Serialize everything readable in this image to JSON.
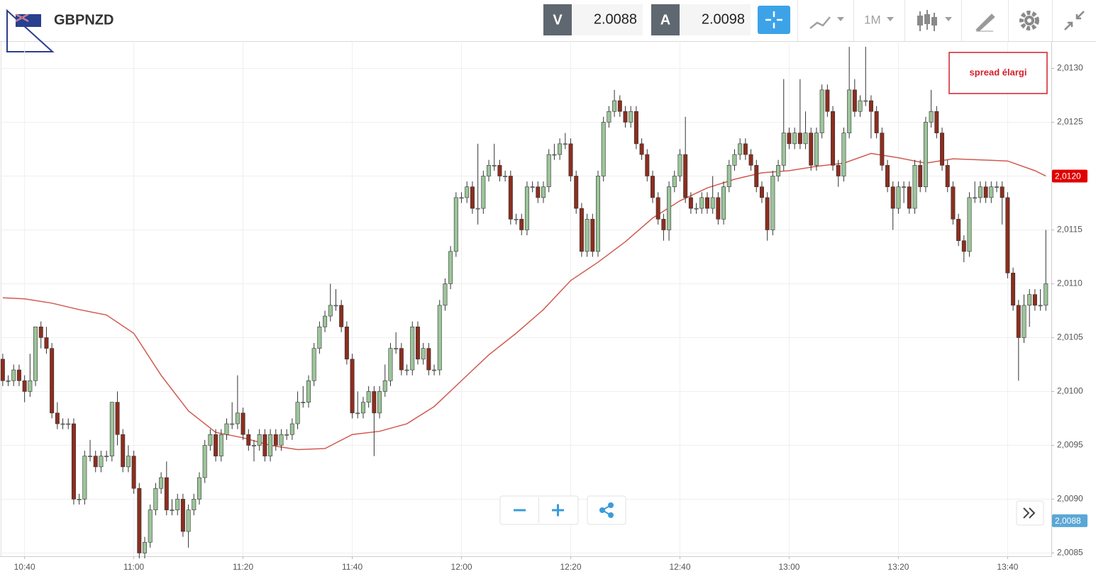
{
  "header": {
    "symbol": "GBPNZD",
    "bid_label": "V",
    "bid": 2.0088,
    "ask_label": "A",
    "ask": 2.0098,
    "timeframe": "1M"
  },
  "chart_data": {
    "type": "candlestick",
    "annotation": "spread élargi",
    "xlim": [
      -0.5,
      192
    ],
    "xticks": [
      {
        "value": 4,
        "label": "10:40"
      },
      {
        "value": 24,
        "label": "11:00"
      },
      {
        "value": 44,
        "label": "11:20"
      },
      {
        "value": 64,
        "label": "11:40"
      },
      {
        "value": 84,
        "label": "12:00"
      },
      {
        "value": 104,
        "label": "12:20"
      },
      {
        "value": 124,
        "label": "12:40"
      },
      {
        "value": 144,
        "label": "13:00"
      },
      {
        "value": 164,
        "label": "13:20"
      },
      {
        "value": 184,
        "label": "13:40"
      }
    ],
    "ylim": [
      2.00847,
      2.01324
    ],
    "yticks": [
      {
        "value": 2.0085,
        "label": "2,0085"
      },
      {
        "value": 2.009,
        "label": "2,0090"
      },
      {
        "value": 2.0095,
        "label": "2,0095"
      },
      {
        "value": 2.01,
        "label": "2,0100"
      },
      {
        "value": 2.0105,
        "label": "2,0105"
      },
      {
        "value": 2.011,
        "label": "2,0110"
      },
      {
        "value": 2.0115,
        "label": "2,0115"
      },
      {
        "value": 2.012,
        "label": "2,0120"
      },
      {
        "value": 2.0125,
        "label": "2,0125"
      },
      {
        "value": 2.013,
        "label": "2,0130"
      }
    ],
    "grid": true,
    "up_color": "#9cc59a",
    "down_color": "#8c2e1f",
    "candles": [
      [
        2.0103,
        2.01035,
        2.01005,
        2.0101
      ],
      [
        2.0101,
        2.01015,
        2.01005,
        2.0101
      ],
      [
        2.0101,
        2.01025,
        2.01005,
        2.0102
      ],
      [
        2.0102,
        2.01025,
        2.01005,
        2.0101
      ],
      [
        2.0101,
        2.01015,
        2.0099,
        2.01
      ],
      [
        2.01,
        2.01035,
        2.00995,
        2.0101
      ],
      [
        2.0101,
        2.0106,
        2.01005,
        2.0106
      ],
      [
        2.0106,
        2.01065,
        2.0104,
        2.0105
      ],
      [
        2.0105,
        2.0106,
        2.01035,
        2.0104
      ],
      [
        2.0104,
        2.01045,
        2.00975,
        2.0098
      ],
      [
        2.0098,
        2.0099,
        2.00965,
        2.0097
      ],
      [
        2.0097,
        2.00975,
        2.00965,
        2.0097
      ],
      [
        2.0097,
        2.00975,
        2.00965,
        2.0097
      ],
      [
        2.0097,
        2.00975,
        2.00895,
        2.009
      ],
      [
        2.009,
        2.00905,
        2.00895,
        2.009
      ],
      [
        2.009,
        2.00945,
        2.00895,
        2.0094
      ],
      [
        2.0094,
        2.00955,
        2.00935,
        2.0094
      ],
      [
        2.0094,
        2.00945,
        2.00925,
        2.0093
      ],
      [
        2.0093,
        2.00945,
        2.00925,
        2.0094
      ],
      [
        2.0094,
        2.00945,
        2.00935,
        2.0094
      ],
      [
        2.0094,
        2.0099,
        2.00935,
        2.0099
      ],
      [
        2.0099,
        2.01,
        2.0095,
        2.0096
      ],
      [
        2.0096,
        2.00965,
        2.00925,
        2.0093
      ],
      [
        2.0093,
        2.0095,
        2.00925,
        2.0094
      ],
      [
        2.0094,
        2.00945,
        2.00905,
        2.0091
      ],
      [
        2.0091,
        2.00915,
        2.00845,
        2.0085
      ],
      [
        2.0085,
        2.00865,
        2.00845,
        2.0086
      ],
      [
        2.0086,
        2.00895,
        2.00855,
        2.0089
      ],
      [
        2.0089,
        2.00915,
        2.00885,
        2.0091
      ],
      [
        2.0091,
        2.00925,
        2.00905,
        2.0092
      ],
      [
        2.0092,
        2.00935,
        2.00885,
        2.0089
      ],
      [
        2.0089,
        2.009,
        2.00885,
        2.0089
      ],
      [
        2.0089,
        2.00905,
        2.00885,
        2.009
      ],
      [
        2.009,
        2.00905,
        2.00865,
        2.0087
      ],
      [
        2.0087,
        2.00895,
        2.00855,
        2.0089
      ],
      [
        2.0089,
        2.00905,
        2.00885,
        2.009
      ],
      [
        2.009,
        2.00925,
        2.00895,
        2.0092
      ],
      [
        2.0092,
        2.00955,
        2.00915,
        2.0095
      ],
      [
        2.0095,
        2.00965,
        2.00945,
        2.0096
      ],
      [
        2.0096,
        2.00965,
        2.00935,
        2.0094
      ],
      [
        2.0094,
        2.00965,
        2.00935,
        2.0096
      ],
      [
        2.0096,
        2.00975,
        2.00955,
        2.0097
      ],
      [
        2.0097,
        2.0099,
        2.00965,
        2.0097
      ],
      [
        2.0097,
        2.01015,
        2.00965,
        2.0098
      ],
      [
        2.0098,
        2.00985,
        2.00955,
        2.0096
      ],
      [
        2.0096,
        2.00965,
        2.00945,
        2.0095
      ],
      [
        2.0095,
        2.00955,
        2.00935,
        2.0095
      ],
      [
        2.0095,
        2.00965,
        2.00945,
        2.0096
      ],
      [
        2.0096,
        2.00965,
        2.00935,
        2.0094
      ],
      [
        2.0094,
        2.00965,
        2.00935,
        2.0096
      ],
      [
        2.0096,
        2.00965,
        2.00945,
        2.0095
      ],
      [
        2.0095,
        2.00965,
        2.00945,
        2.0096
      ],
      [
        2.0096,
        2.00965,
        2.00955,
        2.0096
      ],
      [
        2.0096,
        2.00975,
        2.00955,
        2.0097
      ],
      [
        2.0097,
        2.01,
        2.00965,
        2.0099
      ],
      [
        2.0099,
        2.01005,
        2.00985,
        2.0099
      ],
      [
        2.0099,
        2.01015,
        2.00985,
        2.0101
      ],
      [
        2.0101,
        2.01045,
        2.01005,
        2.0104
      ],
      [
        2.0104,
        2.01065,
        2.01035,
        2.0106
      ],
      [
        2.0106,
        2.01075,
        2.01055,
        2.0107
      ],
      [
        2.0107,
        2.011,
        2.01065,
        2.0108
      ],
      [
        2.0108,
        2.01095,
        2.01075,
        2.0108
      ],
      [
        2.0108,
        2.01085,
        2.01055,
        2.0106
      ],
      [
        2.0106,
        2.01065,
        2.01025,
        2.0103
      ],
      [
        2.0103,
        2.01035,
        2.00975,
        2.0098
      ],
      [
        2.0098,
        2.01,
        2.00975,
        2.0098
      ],
      [
        2.0098,
        2.00995,
        2.00975,
        2.0099
      ],
      [
        2.0099,
        2.01005,
        2.00985,
        2.01
      ],
      [
        2.01,
        2.01005,
        2.0094,
        2.0098
      ],
      [
        2.0098,
        2.01005,
        2.00975,
        2.01
      ],
      [
        2.01,
        2.01025,
        2.00995,
        2.0101
      ],
      [
        2.0101,
        2.01045,
        2.01005,
        2.0104
      ],
      [
        2.0104,
        2.01055,
        2.01035,
        2.0104
      ],
      [
        2.0104,
        2.01045,
        2.01015,
        2.0102
      ],
      [
        2.0102,
        2.01025,
        2.01015,
        2.0102
      ],
      [
        2.0102,
        2.01065,
        2.01015,
        2.0106
      ],
      [
        2.0106,
        2.01065,
        2.01025,
        2.0103
      ],
      [
        2.0103,
        2.01045,
        2.01025,
        2.0104
      ],
      [
        2.0104,
        2.01045,
        2.01015,
        2.0102
      ],
      [
        2.0102,
        2.01025,
        2.01015,
        2.0102
      ],
      [
        2.0102,
        2.01085,
        2.01015,
        2.0108
      ],
      [
        2.0108,
        2.01105,
        2.01075,
        2.011
      ],
      [
        2.011,
        2.01135,
        2.01095,
        2.0113
      ],
      [
        2.0113,
        2.01185,
        2.01125,
        2.0118
      ],
      [
        2.0118,
        2.01185,
        2.01175,
        2.0118
      ],
      [
        2.0118,
        2.01195,
        2.01175,
        2.0119
      ],
      [
        2.0119,
        2.01195,
        2.01165,
        2.0117
      ],
      [
        2.0117,
        2.0123,
        2.01155,
        2.0117
      ],
      [
        2.0117,
        2.01205,
        2.01165,
        2.012
      ],
      [
        2.012,
        2.01215,
        2.01195,
        2.0121
      ],
      [
        2.0121,
        2.0123,
        2.01205,
        2.0121
      ],
      [
        2.0121,
        2.01215,
        2.01195,
        2.012
      ],
      [
        2.012,
        2.01205,
        2.01195,
        2.012
      ],
      [
        2.012,
        2.01205,
        2.01155,
        2.0116
      ],
      [
        2.0116,
        2.01165,
        2.01155,
        2.0116
      ],
      [
        2.0116,
        2.01165,
        2.01145,
        2.0115
      ],
      [
        2.0115,
        2.01195,
        2.01145,
        2.0119
      ],
      [
        2.0119,
        2.01195,
        2.01185,
        2.0119
      ],
      [
        2.0119,
        2.01195,
        2.01175,
        2.0118
      ],
      [
        2.0118,
        2.01195,
        2.01175,
        2.0119
      ],
      [
        2.0119,
        2.01225,
        2.01185,
        2.0122
      ],
      [
        2.0122,
        2.0123,
        2.01215,
        2.0122
      ],
      [
        2.0122,
        2.01235,
        2.01215,
        2.0123
      ],
      [
        2.0123,
        2.0124,
        2.01225,
        2.0123
      ],
      [
        2.0123,
        2.01235,
        2.01195,
        2.012
      ],
      [
        2.012,
        2.01205,
        2.01165,
        2.0117
      ],
      [
        2.0117,
        2.01175,
        2.01125,
        2.0113
      ],
      [
        2.0113,
        2.01165,
        2.01125,
        2.0116
      ],
      [
        2.0116,
        2.01165,
        2.01125,
        2.0113
      ],
      [
        2.0113,
        2.01205,
        2.01125,
        2.012
      ],
      [
        2.012,
        2.01255,
        2.01195,
        2.0125
      ],
      [
        2.0125,
        2.01265,
        2.01245,
        2.0126
      ],
      [
        2.0126,
        2.0128,
        2.01255,
        2.0127
      ],
      [
        2.0127,
        2.01275,
        2.01255,
        2.0126
      ],
      [
        2.0126,
        2.01265,
        2.01245,
        2.0125
      ],
      [
        2.0125,
        2.01265,
        2.01245,
        2.0126
      ],
      [
        2.0126,
        2.01265,
        2.01225,
        2.0123
      ],
      [
        2.0123,
        2.01235,
        2.01215,
        2.0122
      ],
      [
        2.0122,
        2.01225,
        2.01195,
        2.012
      ],
      [
        2.012,
        2.01205,
        2.01175,
        2.0118
      ],
      [
        2.0118,
        2.01185,
        2.01155,
        2.0116
      ],
      [
        2.0116,
        2.01165,
        2.0114,
        2.0115
      ],
      [
        2.0115,
        2.01195,
        2.0114,
        2.0119
      ],
      [
        2.0119,
        2.01205,
        2.01185,
        2.012
      ],
      [
        2.012,
        2.01225,
        2.01195,
        2.0122
      ],
      [
        2.0122,
        2.01255,
        2.01175,
        2.0118
      ],
      [
        2.0118,
        2.01185,
        2.01165,
        2.0117
      ],
      [
        2.0117,
        2.01175,
        2.01165,
        2.0117
      ],
      [
        2.0117,
        2.01185,
        2.01165,
        2.0118
      ],
      [
        2.0118,
        2.01185,
        2.01165,
        2.0117
      ],
      [
        2.0117,
        2.012,
        2.01165,
        2.0118
      ],
      [
        2.0118,
        2.01185,
        2.01155,
        2.0116
      ],
      [
        2.0116,
        2.01195,
        2.01155,
        2.0119
      ],
      [
        2.0119,
        2.01215,
        2.01185,
        2.0121
      ],
      [
        2.0121,
        2.01225,
        2.01205,
        2.0122
      ],
      [
        2.0122,
        2.01235,
        2.01215,
        2.0123
      ],
      [
        2.0123,
        2.01235,
        2.01215,
        2.0122
      ],
      [
        2.0122,
        2.01225,
        2.01205,
        2.0121
      ],
      [
        2.0121,
        2.01215,
        2.01185,
        2.0119
      ],
      [
        2.0119,
        2.01195,
        2.01175,
        2.0118
      ],
      [
        2.0118,
        2.01185,
        2.0114,
        2.0115
      ],
      [
        2.0115,
        2.01205,
        2.01145,
        2.012
      ],
      [
        2.012,
        2.01215,
        2.01195,
        2.0121
      ],
      [
        2.0121,
        2.0129,
        2.01205,
        2.0124
      ],
      [
        2.0124,
        2.01245,
        2.01225,
        2.0123
      ],
      [
        2.0123,
        2.01245,
        2.01225,
        2.0124
      ],
      [
        2.0124,
        2.0129,
        2.01225,
        2.0123
      ],
      [
        2.0123,
        2.0126,
        2.01225,
        2.0124
      ],
      [
        2.0124,
        2.01245,
        2.01205,
        2.0121
      ],
      [
        2.0121,
        2.01245,
        2.01205,
        2.0124
      ],
      [
        2.0124,
        2.01285,
        2.01235,
        2.0128
      ],
      [
        2.0128,
        2.01285,
        2.01255,
        2.0126
      ],
      [
        2.0126,
        2.01265,
        2.01205,
        2.0121
      ],
      [
        2.0121,
        2.01215,
        2.0119,
        2.012
      ],
      [
        2.012,
        2.01245,
        2.01195,
        2.0124
      ],
      [
        2.0124,
        2.0132,
        2.01235,
        2.0128
      ],
      [
        2.0128,
        2.0129,
        2.01255,
        2.0126
      ],
      [
        2.0126,
        2.01275,
        2.01255,
        2.0127
      ],
      [
        2.0127,
        2.0132,
        2.01265,
        2.0127
      ],
      [
        2.0127,
        2.01275,
        2.01235,
        2.0126
      ],
      [
        2.0126,
        2.01265,
        2.01235,
        2.0124
      ],
      [
        2.0124,
        2.01245,
        2.01205,
        2.0121
      ],
      [
        2.0121,
        2.01215,
        2.01185,
        2.0119
      ],
      [
        2.0119,
        2.01195,
        2.0115,
        2.0117
      ],
      [
        2.0117,
        2.01195,
        2.01165,
        2.0119
      ],
      [
        2.0119,
        2.01195,
        2.01175,
        2.0119
      ],
      [
        2.0119,
        2.01195,
        2.01165,
        2.0117
      ],
      [
        2.0117,
        2.01215,
        2.01165,
        2.0121
      ],
      [
        2.0121,
        2.01215,
        2.01185,
        2.0119
      ],
      [
        2.0119,
        2.01255,
        2.01185,
        2.0125
      ],
      [
        2.0125,
        2.0128,
        2.01245,
        2.0126
      ],
      [
        2.0126,
        2.01265,
        2.01235,
        2.0124
      ],
      [
        2.0124,
        2.01245,
        2.01205,
        2.0121
      ],
      [
        2.0121,
        2.01215,
        2.01185,
        2.0119
      ],
      [
        2.0119,
        2.01195,
        2.01155,
        2.0116
      ],
      [
        2.0116,
        2.01165,
        2.01135,
        2.0114
      ],
      [
        2.0114,
        2.01145,
        2.0112,
        2.0113
      ],
      [
        2.0113,
        2.01185,
        2.01125,
        2.0118
      ],
      [
        2.0118,
        2.01195,
        2.01175,
        2.0118
      ],
      [
        2.0118,
        2.01195,
        2.01175,
        2.0119
      ],
      [
        2.0119,
        2.01195,
        2.01175,
        2.0118
      ],
      [
        2.0118,
        2.01195,
        2.01175,
        2.0119
      ],
      [
        2.0119,
        2.01195,
        2.01185,
        2.0119
      ],
      [
        2.0119,
        2.01195,
        2.01155,
        2.0118
      ],
      [
        2.0118,
        2.01185,
        2.01105,
        2.0111
      ],
      [
        2.0111,
        2.01115,
        2.01075,
        2.0108
      ],
      [
        2.0108,
        2.01085,
        2.0101,
        2.0105
      ],
      [
        2.0105,
        2.0109,
        2.01045,
        2.0108
      ],
      [
        2.0108,
        2.01095,
        2.0106,
        2.0109
      ],
      [
        2.0109,
        2.01095,
        2.01075,
        2.0108
      ],
      [
        2.0108,
        2.01095,
        2.01075,
        2.0108
      ],
      [
        2.0108,
        2.0115,
        2.01075,
        2.011
      ]
    ],
    "moving_average": {
      "color": "#d05a50",
      "x": [
        0,
        4,
        9,
        14,
        19,
        24,
        29,
        34,
        39,
        44,
        49,
        54,
        59,
        64,
        69,
        74,
        79,
        84,
        89,
        94,
        99,
        104,
        109,
        114,
        119,
        124,
        129,
        134,
        139,
        144,
        149,
        154,
        159,
        164,
        169,
        174,
        179,
        184,
        189,
        191
      ],
      "values": [
        2.01087,
        2.01086,
        2.01082,
        2.01076,
        2.01071,
        2.01054,
        2.01015,
        2.00982,
        2.00962,
        2.00957,
        2.0095,
        2.00946,
        2.00947,
        2.0096,
        2.00963,
        2.0097,
        2.00986,
        2.0101,
        2.01034,
        2.01054,
        2.01076,
        2.01103,
        2.0112,
        2.01139,
        2.01161,
        2.01177,
        2.01189,
        2.01197,
        2.01203,
        2.01205,
        2.01209,
        2.01212,
        2.01221,
        2.01217,
        2.01212,
        2.01216,
        2.01215,
        2.01214,
        2.01205,
        2.012
      ]
    },
    "price_tags": [
      {
        "value": 2.012,
        "label": "2,0120",
        "color": "#e00000"
      },
      {
        "value": 2.0088,
        "label": "2,0088",
        "color": "#5aa7d6"
      }
    ]
  }
}
